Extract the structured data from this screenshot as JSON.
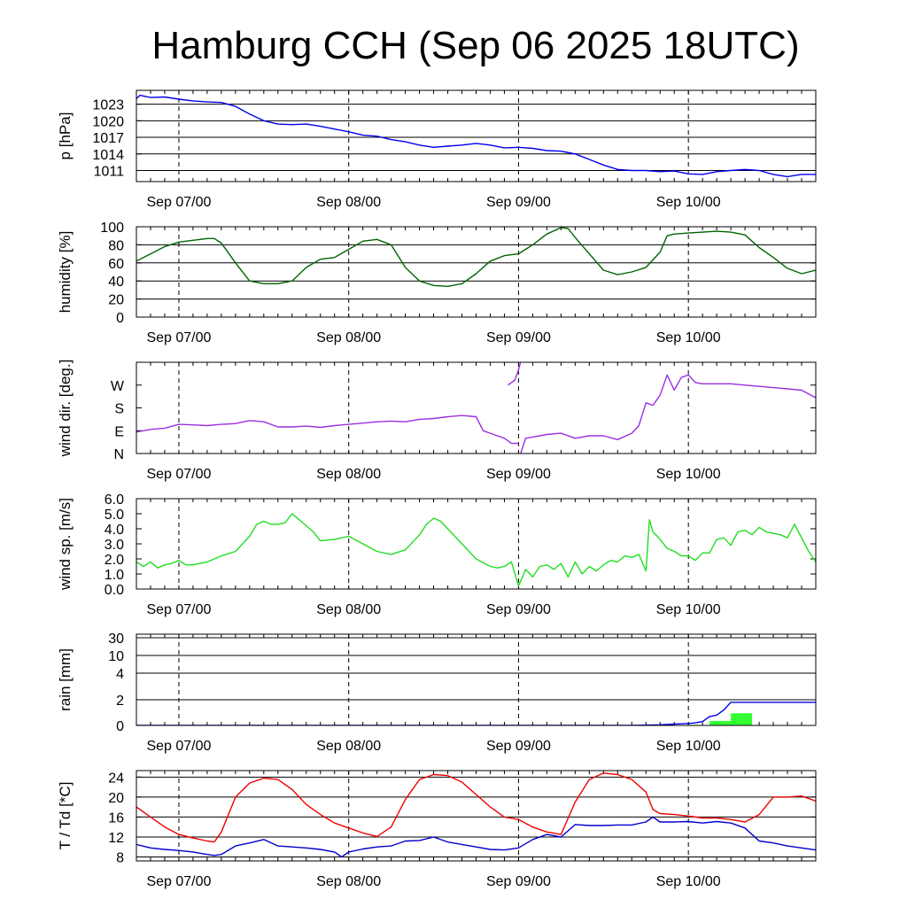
{
  "title": "Hamburg CCH (Sep 06 2025 18UTC)",
  "colors": {
    "pressure": "#0000ee",
    "humidity": "#006400",
    "wind_dir": "#9b30e0",
    "wind_speed": "#22dd22",
    "rain_bar": "#33ff33",
    "rain_cum": "#0000ee",
    "temperature": "#ee0000",
    "dewpoint": "#0000cc"
  },
  "chart_data": [
    {
      "type": "line",
      "id": "pressure",
      "ylabel": "p [hPa]",
      "x_axis": {
        "start_hours": -6,
        "end_hours": 90,
        "tick_hours": [
          0,
          24,
          48,
          72
        ],
        "tick_labels": [
          "Sep 07/00",
          "Sep 08/00",
          "Sep 09/00",
          "Sep 10/00"
        ]
      },
      "ylim": [
        1009,
        1025.5
      ],
      "yticks": [
        1011,
        1014,
        1017,
        1020,
        1023
      ],
      "ytick_labels": [
        "1011",
        "1014",
        "1017",
        "1020",
        "1023"
      ],
      "grid": "horizontal at ticks, dashed vertical at midnight",
      "series": [
        {
          "x": [
            -6,
            -5.5,
            -4,
            -2,
            0,
            2,
            4,
            6,
            8,
            10,
            12,
            14,
            16,
            18,
            20,
            22,
            24,
            26,
            28,
            30,
            32,
            34,
            36,
            38,
            40,
            42,
            44,
            46,
            48,
            50,
            52,
            54,
            56,
            58,
            60,
            62,
            64,
            66,
            68,
            70,
            72,
            74,
            76,
            78,
            80,
            82,
            84,
            86,
            88,
            90
          ],
          "y": [
            1024,
            1024.6,
            1024.2,
            1024.3,
            1023.9,
            1023.6,
            1023.4,
            1023.3,
            1022.6,
            1021.2,
            1020.0,
            1019.4,
            1019.3,
            1019.4,
            1019.0,
            1018.5,
            1018.0,
            1017.4,
            1017.2,
            1016.6,
            1016.2,
            1015.6,
            1015.2,
            1015.4,
            1015.6,
            1015.9,
            1015.6,
            1015.1,
            1015.2,
            1015.0,
            1014.6,
            1014.5,
            1014.0,
            1013.0,
            1012.0,
            1011.2,
            1011.0,
            1011.0,
            1010.8,
            1010.9,
            1010.4,
            1010.3,
            1010.8,
            1011.0,
            1011.2,
            1011.0,
            1010.3,
            1009.9,
            1010.3,
            1010.3
          ]
        }
      ]
    },
    {
      "type": "line",
      "id": "humidity",
      "ylabel": "humidity [%]",
      "x_axis": {
        "start_hours": -6,
        "end_hours": 90,
        "tick_hours": [
          0,
          24,
          48,
          72
        ],
        "tick_labels": [
          "Sep 07/00",
          "Sep 08/00",
          "Sep 09/00",
          "Sep 10/00"
        ]
      },
      "ylim": [
        0,
        100
      ],
      "yticks": [
        0,
        20,
        40,
        60,
        80,
        100
      ],
      "ytick_labels": [
        "0",
        "20",
        "40",
        "60",
        "80",
        "100"
      ],
      "grid": "horizontal at ticks, dashed vertical at midnight",
      "series": [
        {
          "x": [
            -6,
            -4,
            -2,
            0,
            2,
            4,
            5,
            6,
            8,
            10,
            12,
            14,
            16,
            18,
            20,
            22,
            24,
            26,
            28,
            30,
            32,
            34,
            36,
            38,
            40,
            42,
            44,
            46,
            48,
            50,
            52,
            54,
            55,
            56,
            58,
            60,
            62,
            64,
            66,
            68,
            69,
            70,
            72,
            74,
            76,
            78,
            80,
            82,
            84,
            86,
            88,
            90
          ],
          "y": [
            62,
            70,
            78,
            83,
            85,
            87,
            87,
            82,
            60,
            40,
            37,
            37,
            40,
            55,
            64,
            66,
            75,
            84,
            86,
            80,
            55,
            40,
            35,
            34,
            37,
            48,
            62,
            68,
            70,
            80,
            92,
            99,
            98,
            88,
            70,
            52,
            47,
            50,
            55,
            72,
            90,
            92,
            93,
            94,
            95,
            94,
            91,
            77,
            66,
            54,
            48,
            52
          ]
        }
      ]
    },
    {
      "type": "line",
      "id": "wind_dir",
      "ylabel": "wind dir. [deg.]",
      "x_axis": {
        "start_hours": -6,
        "end_hours": 90,
        "tick_hours": [
          0,
          24,
          48,
          72
        ],
        "tick_labels": [
          "Sep 07/00",
          "Sep 08/00",
          "Sep 09/00",
          "Sep 10/00"
        ]
      },
      "ylim": [
        0,
        360
      ],
      "yticks": [
        0,
        90,
        180,
        270
      ],
      "ytick_labels": [
        "N",
        "E",
        "S",
        "W"
      ],
      "grid": "dashed vertical at midnight",
      "series": [
        {
          "x": [
            -6,
            -4,
            -2,
            0,
            2,
            4,
            6,
            8,
            10,
            12,
            14,
            16,
            18,
            20,
            22,
            24,
            26,
            28,
            30,
            32,
            34,
            36,
            38,
            40,
            42,
            43,
            44,
            45,
            46,
            47,
            48
          ],
          "y": [
            85,
            95,
            100,
            115,
            113,
            110,
            115,
            118,
            130,
            125,
            105,
            105,
            108,
            103,
            110,
            115,
            120,
            125,
            128,
            125,
            135,
            138,
            145,
            150,
            145,
            90,
            80,
            70,
            60,
            40,
            40
          ]
        },
        {
          "x": [
            46.5,
            47.5,
            48.0,
            48.3
          ],
          "y": [
            270,
            290,
            330,
            362
          ]
        },
        {
          "x": [
            48.3,
            49,
            50,
            52,
            54,
            56,
            58,
            60,
            62,
            64,
            65,
            66,
            67,
            68,
            69,
            70,
            71,
            72,
            73,
            74,
            76,
            78,
            80,
            82,
            84,
            86,
            88,
            90
          ],
          "y": [
            0,
            60,
            65,
            75,
            80,
            60,
            70,
            70,
            55,
            80,
            110,
            200,
            190,
            230,
            310,
            250,
            300,
            310,
            280,
            275,
            275,
            275,
            270,
            265,
            260,
            255,
            250,
            220
          ]
        }
      ]
    },
    {
      "type": "line",
      "id": "wind_speed",
      "ylabel": "wind sp. [m/s]",
      "x_axis": {
        "start_hours": -6,
        "end_hours": 90,
        "tick_hours": [
          0,
          24,
          48,
          72
        ],
        "tick_labels": [
          "Sep 07/00",
          "Sep 08/00",
          "Sep 09/00",
          "Sep 10/00"
        ]
      },
      "ylim": [
        0,
        6
      ],
      "yticks": [
        0,
        1,
        2,
        3,
        4,
        5,
        6
      ],
      "ytick_labels": [
        "0.0",
        "1.0",
        "2.0",
        "3.0",
        "4.0",
        "5.0",
        "6.0"
      ],
      "grid": "dashed vertical at midnight",
      "series": [
        {
          "x": [
            -6,
            -5,
            -4,
            -3,
            -2,
            -1,
            0,
            1,
            2,
            4,
            6,
            8,
            10,
            11,
            12,
            13,
            14,
            15,
            16,
            17,
            18,
            19,
            20,
            22,
            24,
            26,
            28,
            30,
            32,
            34,
            35,
            36,
            37,
            38,
            40,
            42,
            44,
            45,
            46,
            47,
            48,
            49,
            50,
            51,
            52,
            53,
            54,
            55,
            56,
            57,
            58,
            59,
            60,
            61,
            62,
            63,
            64,
            65,
            66,
            66.5,
            67,
            68,
            69,
            70,
            71,
            72,
            73,
            74,
            75,
            76,
            77,
            78,
            79,
            80,
            81,
            82,
            83,
            84,
            85,
            86,
            87,
            88,
            89,
            90
          ],
          "y": [
            1.8,
            1.5,
            1.8,
            1.4,
            1.6,
            1.7,
            1.9,
            1.6,
            1.6,
            1.8,
            2.2,
            2.5,
            3.5,
            4.3,
            4.5,
            4.3,
            4.3,
            4.4,
            5.0,
            4.6,
            4.2,
            3.8,
            3.2,
            3.3,
            3.5,
            3.0,
            2.5,
            2.3,
            2.6,
            3.6,
            4.3,
            4.7,
            4.5,
            4.0,
            3.0,
            2.0,
            1.5,
            1.4,
            1.5,
            1.8,
            0.2,
            1.3,
            0.8,
            1.5,
            1.6,
            1.3,
            1.7,
            0.8,
            1.8,
            1.0,
            1.5,
            1.2,
            1.6,
            1.9,
            1.8,
            2.2,
            2.1,
            2.3,
            1.2,
            4.6,
            3.8,
            3.3,
            2.7,
            2.5,
            2.2,
            2.2,
            1.9,
            2.4,
            2.4,
            3.3,
            3.4,
            2.9,
            3.8,
            3.9,
            3.6,
            4.1,
            3.8,
            3.7,
            3.6,
            3.4,
            4.3,
            3.4,
            2.5,
            1.8
          ]
        }
      ]
    },
    {
      "type": "bar",
      "id": "rain",
      "ylabel": "rain [mm]",
      "x_axis": {
        "start_hours": -6,
        "end_hours": 90,
        "tick_hours": [
          0,
          24,
          48,
          72
        ],
        "tick_labels": [
          "Sep 07/00",
          "Sep 08/00",
          "Sep 09/00",
          "Sep 10/00"
        ]
      },
      "ylim": [
        0,
        30
      ],
      "y_scale": "nonlinear",
      "yticks": [
        0,
        2,
        4,
        10,
        30
      ],
      "ytick_labels": [
        "0",
        "2",
        "4",
        "10",
        "30"
      ],
      "grid": "horizontal at ticks, dashed vertical at midnight",
      "bars": {
        "x_start": [
          72,
          75,
          76.5,
          78,
          79.5
        ],
        "x_end": [
          73.5,
          76.5,
          78,
          79.5,
          81
        ],
        "values": [
          0.05,
          0.35,
          0.35,
          0.95,
          0.95
        ]
      },
      "series": [
        {
          "name": "accumulated",
          "x": [
            -6,
            64,
            68,
            70,
            72,
            73,
            74,
            75,
            76,
            77,
            78,
            90
          ],
          "y": [
            0,
            0,
            0.05,
            0.1,
            0.15,
            0.2,
            0.3,
            0.7,
            0.8,
            1.2,
            1.8,
            1.8
          ]
        }
      ]
    },
    {
      "type": "line",
      "id": "temperature",
      "ylabel": "T / Td [*C]",
      "x_axis": {
        "start_hours": -6,
        "end_hours": 90,
        "tick_hours": [
          0,
          24,
          48,
          72
        ],
        "tick_labels": [
          "Sep 07/00",
          "Sep 08/00",
          "Sep 09/00",
          "Sep 10/00"
        ]
      },
      "ylim": [
        7.2,
        25.3
      ],
      "yticks": [
        8,
        12,
        16,
        20,
        24
      ],
      "ytick_labels": [
        "8",
        "12",
        "16",
        "20",
        "24"
      ],
      "grid": "horizontal at ticks, dashed vertical at midnight",
      "series": [
        {
          "id": "T",
          "x": [
            -6,
            -4,
            -2,
            0,
            2,
            4,
            5,
            6,
            8,
            10,
            12,
            14,
            16,
            18,
            20,
            22,
            24,
            26,
            28,
            30,
            32,
            34,
            36,
            38,
            40,
            42,
            44,
            46,
            48,
            50,
            52,
            54,
            56,
            58,
            60,
            62,
            64,
            66,
            67,
            68,
            70,
            72,
            74,
            76,
            78,
            80,
            82,
            84,
            86,
            88,
            90
          ],
          "y": [
            18,
            16,
            14,
            12.5,
            11.8,
            11.2,
            11.0,
            13,
            20,
            22.8,
            23.8,
            23.5,
            21.5,
            18.5,
            16.5,
            14.8,
            13.8,
            12.8,
            12.1,
            14,
            19.5,
            23.5,
            24.5,
            24.3,
            23,
            20.5,
            18,
            16,
            15.5,
            14,
            13,
            12.5,
            19,
            23.5,
            24.8,
            24.5,
            23.5,
            21,
            17.5,
            16.7,
            16.5,
            16.2,
            15.8,
            15.8,
            15.5,
            15,
            16.5,
            20,
            20,
            20.2,
            19.2
          ]
        },
        {
          "id": "Td",
          "x": [
            -6,
            -4,
            -2,
            0,
            2,
            4,
            5,
            6,
            8,
            10,
            12,
            14,
            16,
            18,
            20,
            22,
            23,
            24,
            26,
            28,
            30,
            32,
            34,
            36,
            38,
            40,
            42,
            44,
            46,
            48,
            50,
            52,
            54,
            56,
            58,
            60,
            62,
            64,
            66,
            67,
            68,
            70,
            72,
            74,
            76,
            78,
            80,
            82,
            84,
            86,
            88,
            90
          ],
          "y": [
            10.5,
            9.8,
            9.5,
            9.3,
            9.0,
            8.5,
            8.3,
            8.5,
            10.2,
            10.8,
            11.5,
            10.2,
            10.0,
            9.8,
            9.5,
            9.0,
            8.0,
            9.0,
            9.6,
            10.0,
            10.2,
            11.2,
            11.3,
            12.0,
            11.0,
            10.5,
            10.0,
            9.5,
            9.4,
            9.8,
            11.5,
            12.5,
            12.0,
            14.5,
            14.3,
            14.3,
            14.4,
            14.4,
            15.0,
            16.0,
            15.0,
            15.0,
            15.1,
            14.8,
            15.1,
            14.8,
            13.8,
            11.2,
            10.8,
            10.2,
            9.8,
            9.4
          ]
        }
      ]
    }
  ]
}
